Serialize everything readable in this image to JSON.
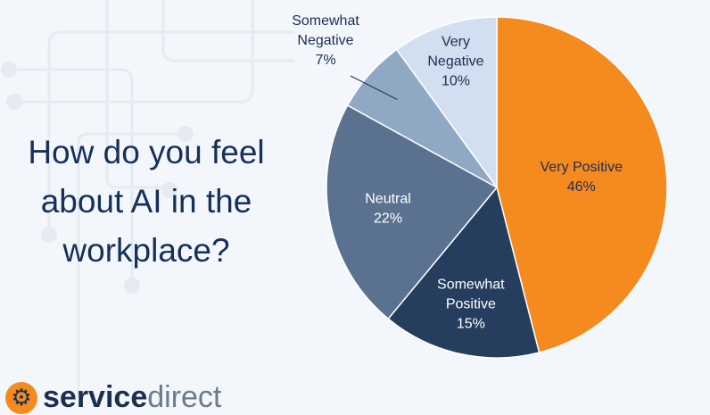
{
  "title": "How do you feel about AI in the workplace?",
  "logo": {
    "text_bold": "service",
    "text_light": "direct"
  },
  "colors": {
    "background": "#f3f7fb",
    "title": "#15305a"
  },
  "chart_data": {
    "type": "pie",
    "title": "How do you feel about AI in the workplace?",
    "start": "top",
    "direction": "clockwise",
    "slices": [
      {
        "label": "Very Positive",
        "value": 46,
        "pct": "46%",
        "color": "#f58a1f",
        "text": "#1b2f4f"
      },
      {
        "label": "Somewhat Positive",
        "value": 15,
        "pct": "15%",
        "color": "#253e5e",
        "text": "#ffffff"
      },
      {
        "label": "Neutral",
        "value": 22,
        "pct": "22%",
        "color": "#5a7290",
        "text": "#ffffff"
      },
      {
        "label": "Somewhat Negative",
        "value": 7,
        "pct": "7%",
        "color": "#8fa8c4",
        "text": "#1b2f4f"
      },
      {
        "label": "Very Negative",
        "value": 10,
        "pct": "10%",
        "color": "#d2dff0",
        "text": "#1b2f4f"
      }
    ]
  }
}
